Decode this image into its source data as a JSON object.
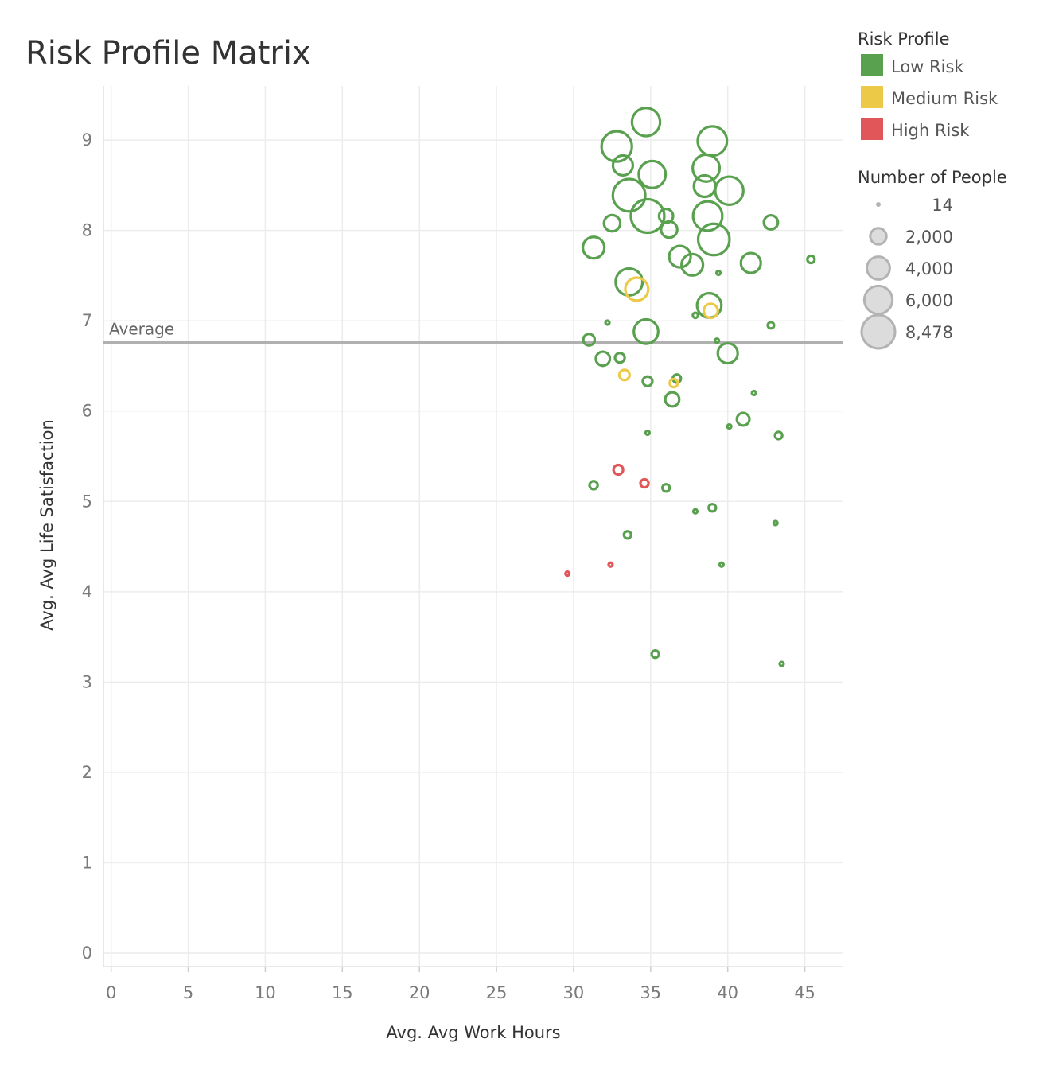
{
  "chart_data": {
    "type": "scatter",
    "title": "Risk Profile Matrix",
    "xlabel": "Avg. Avg Work Hours",
    "ylabel": "Avg. Avg Life Satisfaction",
    "xlim": [
      -0.5,
      47.5
    ],
    "ylim": [
      -0.15,
      9.6
    ],
    "x_ticks": [
      0,
      5,
      10,
      15,
      20,
      25,
      30,
      35,
      40,
      45
    ],
    "y_ticks": [
      0,
      1,
      2,
      3,
      4,
      5,
      6,
      7,
      8,
      9
    ],
    "grid": true,
    "reference_line": {
      "label": "Average",
      "y": 6.76,
      "color": "#b0b0b0"
    },
    "color_legend": {
      "title": "Risk Profile",
      "placement": "top-right",
      "items": [
        {
          "label": "Low Risk",
          "color": "#59a14f"
        },
        {
          "label": "Medium Risk",
          "color": "#edc948"
        },
        {
          "label": "High Risk",
          "color": "#e15759"
        }
      ]
    },
    "size_legend": {
      "title": "Number of People",
      "placement": "right",
      "items": [
        {
          "label": "14",
          "value": 14
        },
        {
          "label": "2,000",
          "value": 2000
        },
        {
          "label": "4,000",
          "value": 4000
        },
        {
          "label": "6,000",
          "value": 6000
        },
        {
          "label": "8,478",
          "value": 8478
        }
      ]
    },
    "points": [
      {
        "x": 34.7,
        "y": 9.2,
        "size": 6000,
        "risk": "Low Risk"
      },
      {
        "x": 32.8,
        "y": 8.93,
        "size": 7000,
        "risk": "Low Risk"
      },
      {
        "x": 39.0,
        "y": 8.99,
        "size": 6500,
        "risk": "Low Risk"
      },
      {
        "x": 33.2,
        "y": 8.72,
        "size": 3000,
        "risk": "Low Risk"
      },
      {
        "x": 35.1,
        "y": 8.62,
        "size": 5500,
        "risk": "Low Risk"
      },
      {
        "x": 38.6,
        "y": 8.69,
        "size": 5500,
        "risk": "Low Risk"
      },
      {
        "x": 38.5,
        "y": 8.49,
        "size": 3500,
        "risk": "Low Risk"
      },
      {
        "x": 40.1,
        "y": 8.44,
        "size": 6000,
        "risk": "Low Risk"
      },
      {
        "x": 33.6,
        "y": 8.39,
        "size": 8000,
        "risk": "Low Risk"
      },
      {
        "x": 34.8,
        "y": 8.16,
        "size": 8478,
        "risk": "Low Risk"
      },
      {
        "x": 36.0,
        "y": 8.16,
        "size": 1500,
        "risk": "Low Risk"
      },
      {
        "x": 38.7,
        "y": 8.16,
        "size": 6500,
        "risk": "Low Risk"
      },
      {
        "x": 32.5,
        "y": 8.08,
        "size": 2000,
        "risk": "Low Risk"
      },
      {
        "x": 42.8,
        "y": 8.09,
        "size": 1500,
        "risk": "Low Risk"
      },
      {
        "x": 36.2,
        "y": 8.01,
        "size": 2000,
        "risk": "Low Risk"
      },
      {
        "x": 39.1,
        "y": 7.9,
        "size": 7500,
        "risk": "Low Risk"
      },
      {
        "x": 31.3,
        "y": 7.81,
        "size": 3500,
        "risk": "Low Risk"
      },
      {
        "x": 36.9,
        "y": 7.71,
        "size": 3500,
        "risk": "Low Risk"
      },
      {
        "x": 45.4,
        "y": 7.68,
        "size": 400,
        "risk": "Low Risk"
      },
      {
        "x": 41.5,
        "y": 7.64,
        "size": 3000,
        "risk": "Low Risk"
      },
      {
        "x": 37.7,
        "y": 7.62,
        "size": 3500,
        "risk": "Low Risk"
      },
      {
        "x": 39.4,
        "y": 7.53,
        "size": 60,
        "risk": "Low Risk"
      },
      {
        "x": 33.6,
        "y": 7.43,
        "size": 5500,
        "risk": "Low Risk"
      },
      {
        "x": 34.1,
        "y": 7.35,
        "size": 4000,
        "risk": "Medium Risk"
      },
      {
        "x": 38.8,
        "y": 7.17,
        "size": 4500,
        "risk": "Low Risk"
      },
      {
        "x": 38.9,
        "y": 7.11,
        "size": 1500,
        "risk": "Medium Risk"
      },
      {
        "x": 37.9,
        "y": 7.06,
        "size": 200,
        "risk": "Low Risk"
      },
      {
        "x": 32.2,
        "y": 6.98,
        "size": 60,
        "risk": "Low Risk"
      },
      {
        "x": 42.8,
        "y": 6.95,
        "size": 300,
        "risk": "Low Risk"
      },
      {
        "x": 34.7,
        "y": 6.88,
        "size": 4500,
        "risk": "Low Risk"
      },
      {
        "x": 31.0,
        "y": 6.79,
        "size": 1000,
        "risk": "Low Risk"
      },
      {
        "x": 39.3,
        "y": 6.78,
        "size": 60,
        "risk": "Low Risk"
      },
      {
        "x": 40.0,
        "y": 6.64,
        "size": 3000,
        "risk": "Low Risk"
      },
      {
        "x": 31.9,
        "y": 6.58,
        "size": 1500,
        "risk": "Low Risk"
      },
      {
        "x": 33.0,
        "y": 6.59,
        "size": 700,
        "risk": "Low Risk"
      },
      {
        "x": 33.3,
        "y": 6.4,
        "size": 800,
        "risk": "Medium Risk"
      },
      {
        "x": 34.8,
        "y": 6.33,
        "size": 700,
        "risk": "Low Risk"
      },
      {
        "x": 36.7,
        "y": 6.36,
        "size": 500,
        "risk": "Low Risk"
      },
      {
        "x": 36.5,
        "y": 6.31,
        "size": 500,
        "risk": "Medium Risk"
      },
      {
        "x": 41.7,
        "y": 6.2,
        "size": 60,
        "risk": "Low Risk"
      },
      {
        "x": 36.4,
        "y": 6.13,
        "size": 1500,
        "risk": "Low Risk"
      },
      {
        "x": 41.0,
        "y": 5.91,
        "size": 1200,
        "risk": "Low Risk"
      },
      {
        "x": 40.1,
        "y": 5.83,
        "size": 60,
        "risk": "Low Risk"
      },
      {
        "x": 34.8,
        "y": 5.76,
        "size": 60,
        "risk": "Low Risk"
      },
      {
        "x": 43.3,
        "y": 5.73,
        "size": 400,
        "risk": "Low Risk"
      },
      {
        "x": 32.9,
        "y": 5.35,
        "size": 700,
        "risk": "High Risk"
      },
      {
        "x": 34.6,
        "y": 5.2,
        "size": 500,
        "risk": "High Risk"
      },
      {
        "x": 31.3,
        "y": 5.18,
        "size": 500,
        "risk": "Low Risk"
      },
      {
        "x": 36.0,
        "y": 5.15,
        "size": 400,
        "risk": "Low Risk"
      },
      {
        "x": 39.0,
        "y": 4.93,
        "size": 400,
        "risk": "Low Risk"
      },
      {
        "x": 37.9,
        "y": 4.89,
        "size": 60,
        "risk": "Low Risk"
      },
      {
        "x": 43.1,
        "y": 4.76,
        "size": 60,
        "risk": "Low Risk"
      },
      {
        "x": 33.5,
        "y": 4.63,
        "size": 400,
        "risk": "Low Risk"
      },
      {
        "x": 39.6,
        "y": 4.3,
        "size": 60,
        "risk": "Low Risk"
      },
      {
        "x": 32.4,
        "y": 4.3,
        "size": 60,
        "risk": "High Risk"
      },
      {
        "x": 29.6,
        "y": 4.2,
        "size": 60,
        "risk": "High Risk"
      },
      {
        "x": 35.3,
        "y": 3.31,
        "size": 400,
        "risk": "Low Risk"
      },
      {
        "x": 43.5,
        "y": 3.2,
        "size": 60,
        "risk": "Low Risk"
      }
    ]
  }
}
